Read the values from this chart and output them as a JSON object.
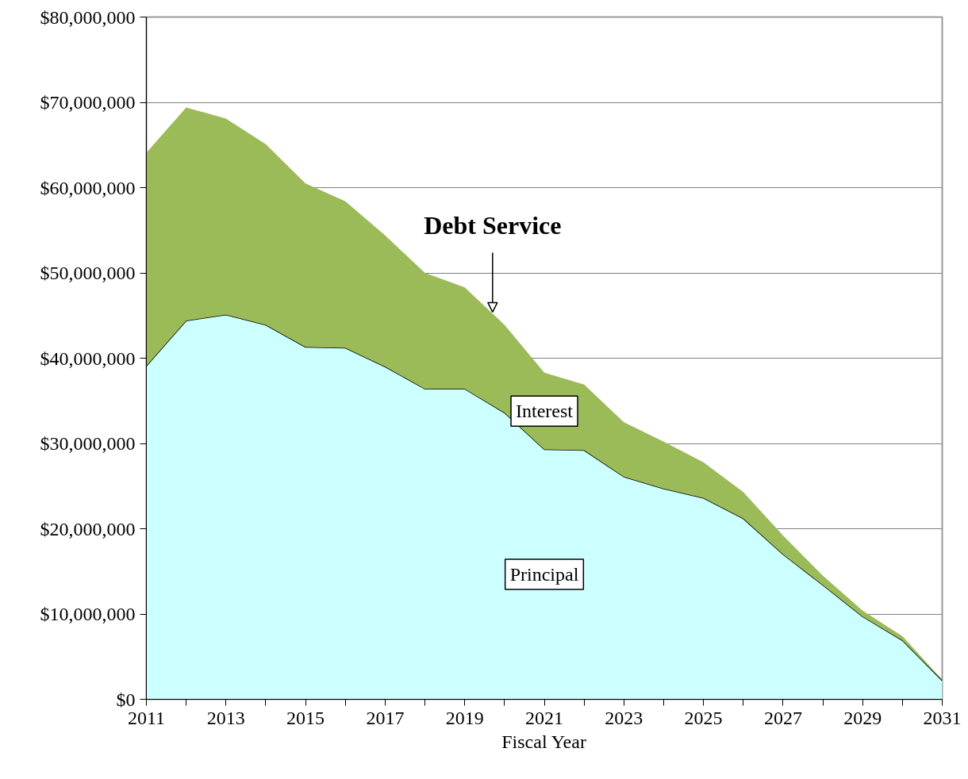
{
  "chart_data": {
    "type": "area",
    "stacked": true,
    "xlabel": "Fiscal Year",
    "x": [
      2011,
      2012,
      2013,
      2014,
      2015,
      2016,
      2017,
      2018,
      2019,
      2020,
      2021,
      2022,
      2023,
      2024,
      2025,
      2026,
      2027,
      2028,
      2029,
      2030,
      2031
    ],
    "series": [
      {
        "name": "Principal",
        "color": "#ccffff",
        "line_style": "solid",
        "values": [
          39100000,
          44400000,
          45100000,
          43900000,
          41300000,
          41200000,
          39000000,
          36400000,
          36400000,
          33600000,
          29300000,
          29200000,
          26100000,
          24700000,
          23600000,
          21200000,
          17000000,
          13400000,
          9700000,
          6900000,
          2200000
        ]
      },
      {
        "name": "Interest",
        "color": "#9bbb59",
        "values": [
          25000000,
          25000000,
          23000000,
          21200000,
          19200000,
          17200000,
          15400000,
          13600000,
          11900000,
          10300000,
          9000000,
          7700000,
          6400000,
          5500000,
          4200000,
          3100000,
          2200000,
          1100000,
          700000,
          500000,
          100000
        ]
      }
    ],
    "xlim": [
      2011,
      2031
    ],
    "ylim": [
      0,
      80000000
    ],
    "xticks": [
      2011,
      {
        "value": 2012,
        "label": null
      },
      2013,
      {
        "value": 2014,
        "label": null
      },
      2015,
      {
        "value": 2016,
        "label": null
      },
      2017,
      {
        "value": 2018,
        "label": null
      },
      2019,
      {
        "value": 2020,
        "label": null
      },
      2021,
      {
        "value": 2022,
        "label": null
      },
      2023,
      {
        "value": 2024,
        "label": null
      },
      2025,
      {
        "value": 2026,
        "label": null
      },
      2027,
      {
        "value": 2028,
        "label": null
      },
      2029,
      {
        "value": 2030,
        "label": null
      },
      2031
    ],
    "yticks": [
      {
        "value": 0,
        "label": "$0"
      },
      {
        "value": 10000000,
        "label": "$10,000,000"
      },
      {
        "value": 20000000,
        "label": "$20,000,000"
      },
      {
        "value": 30000000,
        "label": "$30,000,000"
      },
      {
        "value": 40000000,
        "label": "$40,000,000"
      },
      {
        "value": 50000000,
        "label": "$50,000,000"
      },
      {
        "value": 60000000,
        "label": "$60,000,000"
      },
      {
        "value": 70000000,
        "label": "$70,000,000"
      },
      {
        "value": 80000000,
        "label": "$80,000,000"
      }
    ],
    "grid": "y",
    "annotations": [
      {
        "text": "Debt Service",
        "x": 2019.7,
        "y": 45400000
      }
    ]
  }
}
